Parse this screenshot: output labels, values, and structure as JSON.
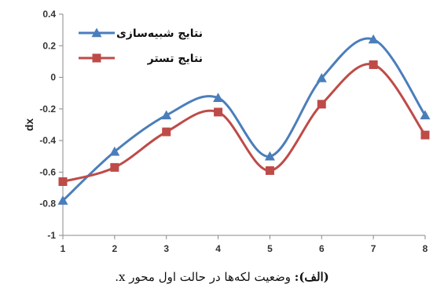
{
  "chart_data": {
    "type": "line",
    "x": [
      1,
      2,
      3,
      4,
      5,
      6,
      7,
      8
    ],
    "xticks": [
      "1",
      "2",
      "3",
      "4",
      "5",
      "6",
      "7",
      "8"
    ],
    "yticks": [
      "0.4",
      "0.2",
      "0",
      "-0.2",
      "-0.4",
      "-0.6",
      "-0.8",
      "-1"
    ],
    "ylim": [
      -1,
      0.4
    ],
    "xlim": [
      1,
      8
    ],
    "ylabel": "dx",
    "xlabel": "",
    "title": "",
    "grid": false,
    "legend_position": "top-left",
    "series": [
      {
        "name": "نتایج شبیه‌سازی",
        "color": "#4a7ebb",
        "marker": "triangle",
        "values": [
          -0.78,
          -0.47,
          -0.24,
          -0.13,
          -0.5,
          -0.005,
          0.24,
          -0.24
        ]
      },
      {
        "name": "نتایج تستر",
        "color": "#be4b48",
        "marker": "square",
        "values": [
          -0.66,
          -0.57,
          -0.345,
          -0.22,
          -0.59,
          -0.17,
          0.08,
          -0.365
        ]
      }
    ]
  },
  "caption": {
    "label": "(الف):",
    "text": " وضعیت لکه‌ها در حالت اول محور x."
  }
}
